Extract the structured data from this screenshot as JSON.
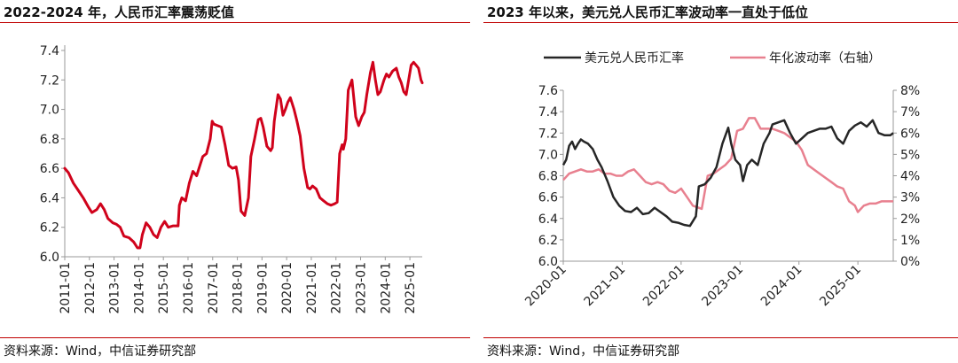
{
  "left_panel": {
    "title": "2022-2024 年，人民币汇率震荡贬值",
    "source": "资料来源：Wind，中信证券研究部"
  },
  "right_panel": {
    "title": "2023 年以来，美元兑人民币汇率波动率一直处于低位",
    "source": "资料来源：Wind，中信证券研究部"
  },
  "colors": {
    "rule": "#c00000",
    "left_series": "#d0021b",
    "usdcny": "#262626",
    "volatility": "#e8808f"
  },
  "chart_data": [
    {
      "type": "line",
      "title": "2022-2024 年，人民币汇率震荡贬值",
      "xlabel": "",
      "ylabel": "",
      "ylim": [
        6.0,
        7.4
      ],
      "yticks": [
        "6.0",
        "6.2",
        "6.4",
        "6.6",
        "6.8",
        "7.0",
        "7.2",
        "7.4"
      ],
      "xlim": [
        2011.0,
        2025.5
      ],
      "xticks": [
        "2011-01",
        "2012-01",
        "2013-01",
        "2014-01",
        "2015-01",
        "2016-01",
        "2017-01",
        "2018-01",
        "2019-01",
        "2020-01",
        "2021-01",
        "2022-01",
        "2023-01",
        "2024-01",
        "2025-01"
      ],
      "grid": false,
      "series": [
        {
          "name": "人民币汇率",
          "x": [
            2011.0,
            2011.15,
            2011.35,
            2011.55,
            2011.75,
            2011.95,
            2012.1,
            2012.3,
            2012.45,
            2012.6,
            2012.75,
            2012.95,
            2013.1,
            2013.25,
            2013.4,
            2013.6,
            2013.8,
            2013.95,
            2014.05,
            2014.15,
            2014.3,
            2014.45,
            2014.6,
            2014.75,
            2014.9,
            2015.05,
            2015.2,
            2015.4,
            2015.6,
            2015.65,
            2015.75,
            2015.9,
            2016.05,
            2016.2,
            2016.35,
            2016.5,
            2016.6,
            2016.75,
            2016.9,
            2016.98,
            2017.05,
            2017.2,
            2017.35,
            2017.5,
            2017.65,
            2017.8,
            2017.95,
            2018.05,
            2018.15,
            2018.3,
            2018.45,
            2018.55,
            2018.7,
            2018.85,
            2018.95,
            2019.05,
            2019.2,
            2019.35,
            2019.42,
            2019.5,
            2019.65,
            2019.75,
            2019.85,
            2019.95,
            2020.05,
            2020.15,
            2020.3,
            2020.42,
            2020.55,
            2020.7,
            2020.85,
            2020.95,
            2021.05,
            2021.2,
            2021.35,
            2021.5,
            2021.65,
            2021.8,
            2021.95,
            2022.05,
            2022.15,
            2022.25,
            2022.3,
            2022.4,
            2022.5,
            2022.65,
            2022.8,
            2022.92,
            2023.05,
            2023.15,
            2023.25,
            2023.4,
            2023.5,
            2023.6,
            2023.7,
            2023.8,
            2023.95,
            2024.05,
            2024.15,
            2024.3,
            2024.45,
            2024.55,
            2024.65,
            2024.75,
            2024.85,
            2024.95,
            2025.05,
            2025.15,
            2025.25,
            2025.35,
            2025.45,
            2025.5
          ],
          "values": [
            6.6,
            6.57,
            6.5,
            6.45,
            6.4,
            6.34,
            6.3,
            6.32,
            6.36,
            6.32,
            6.26,
            6.23,
            6.22,
            6.2,
            6.14,
            6.13,
            6.1,
            6.06,
            6.06,
            6.15,
            6.23,
            6.2,
            6.15,
            6.13,
            6.2,
            6.24,
            6.2,
            6.21,
            6.21,
            6.35,
            6.4,
            6.38,
            6.5,
            6.58,
            6.55,
            6.63,
            6.68,
            6.7,
            6.8,
            6.92,
            6.9,
            6.89,
            6.88,
            6.76,
            6.62,
            6.6,
            6.61,
            6.52,
            6.31,
            6.28,
            6.4,
            6.68,
            6.8,
            6.93,
            6.94,
            6.88,
            6.75,
            6.72,
            6.74,
            6.92,
            7.1,
            7.07,
            6.96,
            7.0,
            7.05,
            7.08,
            7.0,
            6.92,
            6.82,
            6.6,
            6.47,
            6.46,
            6.48,
            6.46,
            6.4,
            6.38,
            6.36,
            6.35,
            6.36,
            6.37,
            6.7,
            6.76,
            6.73,
            6.8,
            7.13,
            7.2,
            6.95,
            6.89,
            6.95,
            6.98,
            7.1,
            7.25,
            7.32,
            7.2,
            7.1,
            7.12,
            7.2,
            7.24,
            7.22,
            7.26,
            7.28,
            7.22,
            7.18,
            7.12,
            7.1,
            7.2,
            7.3,
            7.32,
            7.3,
            7.28,
            7.2,
            7.18
          ]
        }
      ]
    },
    {
      "type": "line",
      "title": "2023 年以来，美元兑人民币汇率波动率一直处于低位",
      "xlabel": "",
      "ylabel": "",
      "ylim": [
        6.0,
        7.6
      ],
      "yticks": [
        "6.0",
        "6.2",
        "6.4",
        "6.6",
        "6.8",
        "7.0",
        "7.2",
        "7.4",
        "7.6"
      ],
      "y2lim": [
        0,
        8
      ],
      "y2ticks": [
        "0%",
        "1%",
        "2%",
        "3%",
        "4%",
        "5%",
        "6%",
        "7%",
        "8%"
      ],
      "xlim": [
        2020.0,
        2025.6
      ],
      "xticks": [
        "2020-01",
        "2021-01",
        "2022-01",
        "2023-01",
        "2024-01",
        "2025-01"
      ],
      "legend_position": "top",
      "grid": false,
      "series": [
        {
          "name": "美元兑人民币汇率",
          "axis": "left",
          "x": [
            2020.0,
            2020.05,
            2020.1,
            2020.15,
            2020.2,
            2020.25,
            2020.3,
            2020.35,
            2020.42,
            2020.5,
            2020.58,
            2020.65,
            2020.75,
            2020.85,
            2020.95,
            2021.05,
            2021.15,
            2021.25,
            2021.35,
            2021.45,
            2021.55,
            2021.65,
            2021.75,
            2021.85,
            2021.95,
            2022.05,
            2022.15,
            2022.25,
            2022.3,
            2022.4,
            2022.5,
            2022.6,
            2022.7,
            2022.8,
            2022.85,
            2022.92,
            2023.0,
            2023.05,
            2023.12,
            2023.2,
            2023.3,
            2023.4,
            2023.5,
            2023.55,
            2023.65,
            2023.75,
            2023.85,
            2023.95,
            2024.05,
            2024.15,
            2024.25,
            2024.35,
            2024.45,
            2024.55,
            2024.65,
            2024.75,
            2024.85,
            2024.95,
            2025.05,
            2025.15,
            2025.25,
            2025.35,
            2025.45,
            2025.55,
            2025.6
          ],
          "values": [
            6.9,
            6.95,
            7.08,
            7.12,
            7.05,
            7.1,
            7.14,
            7.12,
            7.1,
            7.05,
            6.95,
            6.88,
            6.75,
            6.6,
            6.52,
            6.47,
            6.46,
            6.5,
            6.44,
            6.45,
            6.5,
            6.46,
            6.42,
            6.37,
            6.36,
            6.34,
            6.33,
            6.42,
            6.7,
            6.72,
            6.78,
            6.88,
            7.1,
            7.25,
            7.1,
            6.95,
            6.9,
            6.75,
            6.9,
            6.95,
            6.9,
            7.1,
            7.2,
            7.28,
            7.3,
            7.32,
            7.2,
            7.1,
            7.15,
            7.2,
            7.22,
            7.24,
            7.24,
            7.26,
            7.15,
            7.1,
            7.22,
            7.27,
            7.3,
            7.26,
            7.32,
            7.2,
            7.18,
            7.18,
            7.2
          ]
        },
        {
          "name": "年化波动率（右轴）",
          "axis": "right",
          "x": [
            2020.0,
            2020.1,
            2020.2,
            2020.3,
            2020.4,
            2020.5,
            2020.6,
            2020.7,
            2020.8,
            2020.9,
            2021.0,
            2021.1,
            2021.2,
            2021.3,
            2021.4,
            2021.5,
            2021.6,
            2021.7,
            2021.8,
            2021.9,
            2022.0,
            2022.1,
            2022.2,
            2022.3,
            2022.35,
            2022.45,
            2022.55,
            2022.65,
            2022.75,
            2022.85,
            2022.95,
            2023.05,
            2023.15,
            2023.25,
            2023.35,
            2023.45,
            2023.55,
            2023.65,
            2023.75,
            2023.85,
            2023.95,
            2024.05,
            2024.15,
            2024.25,
            2024.35,
            2024.45,
            2024.55,
            2024.65,
            2024.75,
            2024.85,
            2024.95,
            2025.0,
            2025.1,
            2025.2,
            2025.3,
            2025.4,
            2025.5,
            2025.6
          ],
          "values": [
            3.8,
            4.1,
            4.2,
            4.3,
            4.2,
            4.2,
            4.3,
            4.1,
            4.1,
            4.0,
            4.0,
            4.2,
            4.3,
            4.0,
            3.7,
            3.6,
            3.7,
            3.6,
            3.3,
            3.2,
            3.4,
            3.0,
            2.6,
            2.5,
            2.45,
            4.0,
            4.1,
            4.3,
            4.5,
            4.8,
            6.1,
            6.2,
            6.7,
            6.7,
            6.2,
            6.2,
            6.2,
            6.1,
            6.0,
            5.8,
            5.6,
            5.2,
            4.5,
            4.3,
            4.1,
            3.9,
            3.7,
            3.5,
            3.4,
            2.8,
            2.6,
            2.3,
            2.6,
            2.7,
            2.7,
            2.8,
            2.8,
            2.8
          ]
        }
      ]
    }
  ]
}
